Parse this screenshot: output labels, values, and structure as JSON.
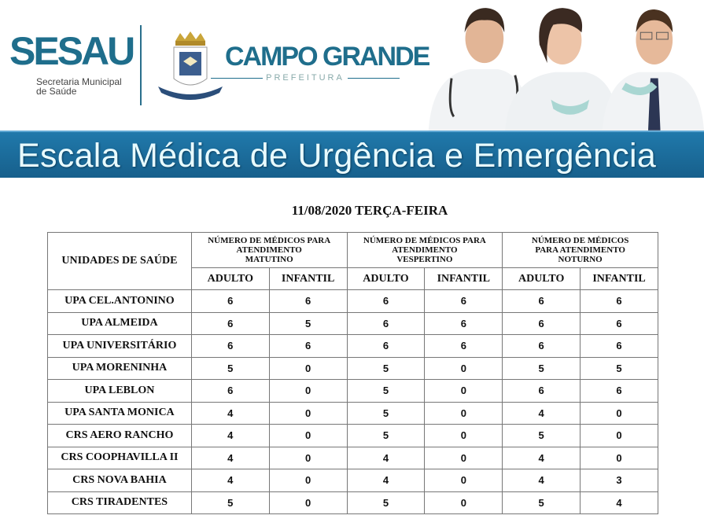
{
  "header": {
    "sesau": "SESAU",
    "sesau_sub_1": "Secretaria Municipal",
    "sesau_sub_2": "de Saúde",
    "city": "CAMPO GRANDE",
    "prefeitura": "PREFEITURA",
    "banner_title": "Escala Médica de Urgência e Emergência",
    "brand_color": "#1f6e8c",
    "bar_color": "#1b6fa0"
  },
  "date_title": "11/08/2020 TERÇA-FEIRA",
  "table": {
    "unit_header": "UNIDADES DE SAÚDE",
    "groups": [
      {
        "l1": "NÚMERO DE MÉDICOS PARA",
        "l2": "ATENDIMENTO",
        "l3": "MATUTINO"
      },
      {
        "l1": "NÚMERO DE MÉDICOS PARA",
        "l2": "ATENDIMENTO",
        "l3": "VESPERTINO"
      },
      {
        "l1": "NÚMERO DE MÉDICOS",
        "l2": "PARA ATENDIMENTO",
        "l3": "NOTURNO"
      }
    ],
    "sub": [
      "ADULTO",
      "INFANTIL",
      "ADULTO",
      "INFANTIL",
      "ADULTO",
      "INFANTIL"
    ],
    "rows": [
      {
        "name": "UPA CEL.ANTONINO",
        "v": [
          "6",
          "6",
          "6",
          "6",
          "6",
          "6"
        ]
      },
      {
        "name": "UPA ALMEIDA",
        "v": [
          "6",
          "5",
          "6",
          "6",
          "6",
          "6"
        ]
      },
      {
        "name": "UPA UNIVERSITÁRIO",
        "v": [
          "6",
          "6",
          "6",
          "6",
          "6",
          "6"
        ]
      },
      {
        "name": "UPA MORENINHA",
        "v": [
          "5",
          "0",
          "5",
          "0",
          "5",
          "5"
        ]
      },
      {
        "name": "UPA LEBLON",
        "v": [
          "6",
          "0",
          "5",
          "0",
          "6",
          "6"
        ]
      },
      {
        "name": "UPA SANTA MONICA",
        "v": [
          "4",
          "0",
          "5",
          "0",
          "4",
          "0"
        ]
      },
      {
        "name": "CRS AERO RANCHO",
        "v": [
          "4",
          "0",
          "5",
          "0",
          "5",
          "0"
        ]
      },
      {
        "name": "CRS COOPHAVILLA II",
        "v": [
          "4",
          "0",
          "4",
          "0",
          "4",
          "0"
        ]
      },
      {
        "name": "CRS NOVA BAHIA",
        "v": [
          "4",
          "0",
          "4",
          "0",
          "4",
          "3"
        ]
      },
      {
        "name": "CRS TIRADENTES",
        "v": [
          "5",
          "0",
          "5",
          "0",
          "5",
          "4"
        ]
      }
    ]
  }
}
